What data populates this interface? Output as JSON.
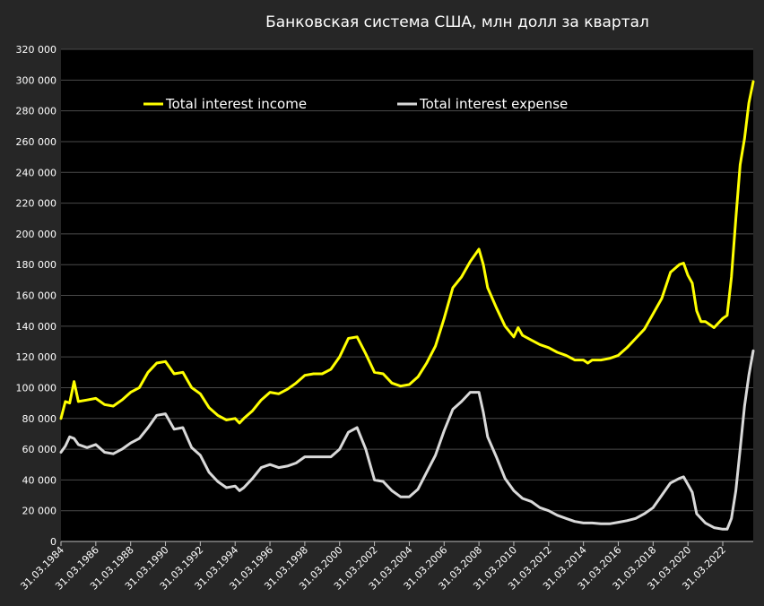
{
  "chart_data": {
    "type": "line",
    "title": "Банковская система США, млн долл за квартал",
    "xlabel": "",
    "ylabel": "",
    "ylim": [
      0,
      320000
    ],
    "y_ticks": [
      0,
      20000,
      40000,
      60000,
      80000,
      100000,
      120000,
      140000,
      160000,
      180000,
      200000,
      220000,
      240000,
      260000,
      280000,
      300000,
      320000
    ],
    "y_tick_labels": [
      "0",
      "20 000",
      "40 000",
      "60 000",
      "80 000",
      "100 000",
      "120 000",
      "140 000",
      "160 000",
      "180 000",
      "200 000",
      "220 000",
      "240 000",
      "260 000",
      "280 000",
      "300 000",
      "320 000"
    ],
    "xlim": [
      1984.0,
      2023.75
    ],
    "x_ticks": [
      1984,
      1986,
      1988,
      1990,
      1992,
      1994,
      1996,
      1998,
      2000,
      2002,
      2004,
      2006,
      2008,
      2010,
      2012,
      2014,
      2016,
      2018,
      2020,
      2022
    ],
    "x_tick_labels": [
      "31.03.1984",
      "31.03.1986",
      "31.03.1988",
      "31.03.1990",
      "31.03.1992",
      "31.03.1994",
      "31.03.1996",
      "31.03.1998",
      "31.03.2000",
      "31.03.2002",
      "31.03.2004",
      "31.03.2006",
      "31.03.2008",
      "31.03.2010",
      "31.03.2012",
      "31.03.2014",
      "31.03.2016",
      "31.03.2018",
      "31.03.2020",
      "31.03.2022"
    ],
    "grid": "horizontal",
    "background": "#262626",
    "plot_background": "#000000",
    "legend_position": "top",
    "series": [
      {
        "name": "Total interest income",
        "color": "#ffff00",
        "points": [
          [
            1984,
            80000
          ],
          [
            1984.25,
            91000
          ],
          [
            1984.5,
            90000
          ],
          [
            1984.75,
            104000
          ],
          [
            1985,
            91000
          ],
          [
            1985.5,
            92000
          ],
          [
            1986,
            93000
          ],
          [
            1986.5,
            89000
          ],
          [
            1987,
            88000
          ],
          [
            1987.5,
            92000
          ],
          [
            1988,
            97000
          ],
          [
            1988.5,
            100000
          ],
          [
            1989,
            110000
          ],
          [
            1989.5,
            116000
          ],
          [
            1990,
            117000
          ],
          [
            1990.5,
            109000
          ],
          [
            1991,
            110000
          ],
          [
            1991.5,
            100000
          ],
          [
            1992,
            96000
          ],
          [
            1992.5,
            87000
          ],
          [
            1993,
            82000
          ],
          [
            1993.5,
            79000
          ],
          [
            1994,
            80000
          ],
          [
            1994.25,
            77000
          ],
          [
            1994.5,
            80000
          ],
          [
            1995,
            85000
          ],
          [
            1995.5,
            92000
          ],
          [
            1996,
            97000
          ],
          [
            1996.5,
            96000
          ],
          [
            1997,
            99000
          ],
          [
            1997.5,
            103000
          ],
          [
            1998,
            108000
          ],
          [
            1998.5,
            109000
          ],
          [
            1999,
            109000
          ],
          [
            1999.5,
            112000
          ],
          [
            2000,
            120000
          ],
          [
            2000.5,
            132000
          ],
          [
            2001,
            133000
          ],
          [
            2001.5,
            122000
          ],
          [
            2002,
            110000
          ],
          [
            2002.5,
            109000
          ],
          [
            2003,
            103000
          ],
          [
            2003.5,
            101000
          ],
          [
            2004,
            102000
          ],
          [
            2004.5,
            107000
          ],
          [
            2005,
            116000
          ],
          [
            2005.5,
            127000
          ],
          [
            2006,
            145000
          ],
          [
            2006.5,
            165000
          ],
          [
            2007,
            172000
          ],
          [
            2007.5,
            182000
          ],
          [
            2008,
            190000
          ],
          [
            2008.25,
            180000
          ],
          [
            2008.5,
            165000
          ],
          [
            2009,
            152000
          ],
          [
            2009.5,
            140000
          ],
          [
            2010,
            133000
          ],
          [
            2010.25,
            139000
          ],
          [
            2010.5,
            134000
          ],
          [
            2011,
            131000
          ],
          [
            2011.5,
            128000
          ],
          [
            2012,
            126000
          ],
          [
            2012.5,
            123000
          ],
          [
            2013,
            121000
          ],
          [
            2013.5,
            118000
          ],
          [
            2014,
            118000
          ],
          [
            2014.25,
            116000
          ],
          [
            2014.5,
            118000
          ],
          [
            2015,
            118000
          ],
          [
            2015.5,
            119000
          ],
          [
            2016,
            121000
          ],
          [
            2016.5,
            126000
          ],
          [
            2017,
            132000
          ],
          [
            2017.5,
            138000
          ],
          [
            2018,
            148000
          ],
          [
            2018.5,
            158000
          ],
          [
            2019,
            175000
          ],
          [
            2019.5,
            180000
          ],
          [
            2019.75,
            181000
          ],
          [
            2020,
            173000
          ],
          [
            2020.25,
            168000
          ],
          [
            2020.5,
            150000
          ],
          [
            2020.75,
            143000
          ],
          [
            2021,
            143000
          ],
          [
            2021.5,
            139000
          ],
          [
            2022,
            145000
          ],
          [
            2022.25,
            147000
          ],
          [
            2022.5,
            172000
          ],
          [
            2022.75,
            210000
          ],
          [
            2023,
            245000
          ],
          [
            2023.25,
            262000
          ],
          [
            2023.5,
            285000
          ],
          [
            2023.75,
            299000
          ]
        ]
      },
      {
        "name": "Total interest expense",
        "color": "#d9d9d9",
        "points": [
          [
            1984,
            58000
          ],
          [
            1984.25,
            62000
          ],
          [
            1984.5,
            68000
          ],
          [
            1984.75,
            67000
          ],
          [
            1985,
            63000
          ],
          [
            1985.5,
            61000
          ],
          [
            1986,
            63000
          ],
          [
            1986.5,
            58000
          ],
          [
            1987,
            57000
          ],
          [
            1987.5,
            60000
          ],
          [
            1988,
            64000
          ],
          [
            1988.5,
            67000
          ],
          [
            1989,
            74000
          ],
          [
            1989.5,
            82000
          ],
          [
            1990,
            83000
          ],
          [
            1990.5,
            73000
          ],
          [
            1991,
            74000
          ],
          [
            1991.5,
            61000
          ],
          [
            1992,
            56000
          ],
          [
            1992.5,
            45000
          ],
          [
            1993,
            39000
          ],
          [
            1993.5,
            35000
          ],
          [
            1994,
            36000
          ],
          [
            1994.25,
            33000
          ],
          [
            1994.5,
            35000
          ],
          [
            1995,
            41000
          ],
          [
            1995.5,
            48000
          ],
          [
            1996,
            50000
          ],
          [
            1996.5,
            48000
          ],
          [
            1997,
            49000
          ],
          [
            1997.5,
            51000
          ],
          [
            1998,
            55000
          ],
          [
            1998.5,
            55000
          ],
          [
            1999,
            55000
          ],
          [
            1999.5,
            55000
          ],
          [
            2000,
            60000
          ],
          [
            2000.5,
            71000
          ],
          [
            2001,
            74000
          ],
          [
            2001.5,
            60000
          ],
          [
            2002,
            40000
          ],
          [
            2002.5,
            39000
          ],
          [
            2003,
            33000
          ],
          [
            2003.5,
            29000
          ],
          [
            2004,
            29000
          ],
          [
            2004.5,
            34000
          ],
          [
            2005,
            45000
          ],
          [
            2005.5,
            56000
          ],
          [
            2006,
            72000
          ],
          [
            2006.5,
            86000
          ],
          [
            2007,
            91000
          ],
          [
            2007.5,
            97000
          ],
          [
            2008,
            97000
          ],
          [
            2008.25,
            84000
          ],
          [
            2008.5,
            68000
          ],
          [
            2009,
            55000
          ],
          [
            2009.5,
            41000
          ],
          [
            2010,
            33000
          ],
          [
            2010.5,
            28000
          ],
          [
            2011,
            26000
          ],
          [
            2011.5,
            22000
          ],
          [
            2012,
            20000
          ],
          [
            2012.5,
            17000
          ],
          [
            2013,
            15000
          ],
          [
            2013.5,
            13000
          ],
          [
            2014,
            12000
          ],
          [
            2014.5,
            12000
          ],
          [
            2015,
            11500
          ],
          [
            2015.5,
            11500
          ],
          [
            2016,
            12500
          ],
          [
            2016.5,
            13500
          ],
          [
            2017,
            15000
          ],
          [
            2017.5,
            18000
          ],
          [
            2018,
            22000
          ],
          [
            2018.5,
            30000
          ],
          [
            2019,
            38000
          ],
          [
            2019.5,
            41000
          ],
          [
            2019.75,
            42000
          ],
          [
            2020,
            37000
          ],
          [
            2020.25,
            32000
          ],
          [
            2020.5,
            18000
          ],
          [
            2021,
            12000
          ],
          [
            2021.5,
            9000
          ],
          [
            2022,
            8000
          ],
          [
            2022.25,
            8000
          ],
          [
            2022.5,
            15000
          ],
          [
            2022.75,
            33000
          ],
          [
            2023,
            60000
          ],
          [
            2023.25,
            88000
          ],
          [
            2023.5,
            108000
          ],
          [
            2023.75,
            124000
          ]
        ]
      }
    ]
  }
}
